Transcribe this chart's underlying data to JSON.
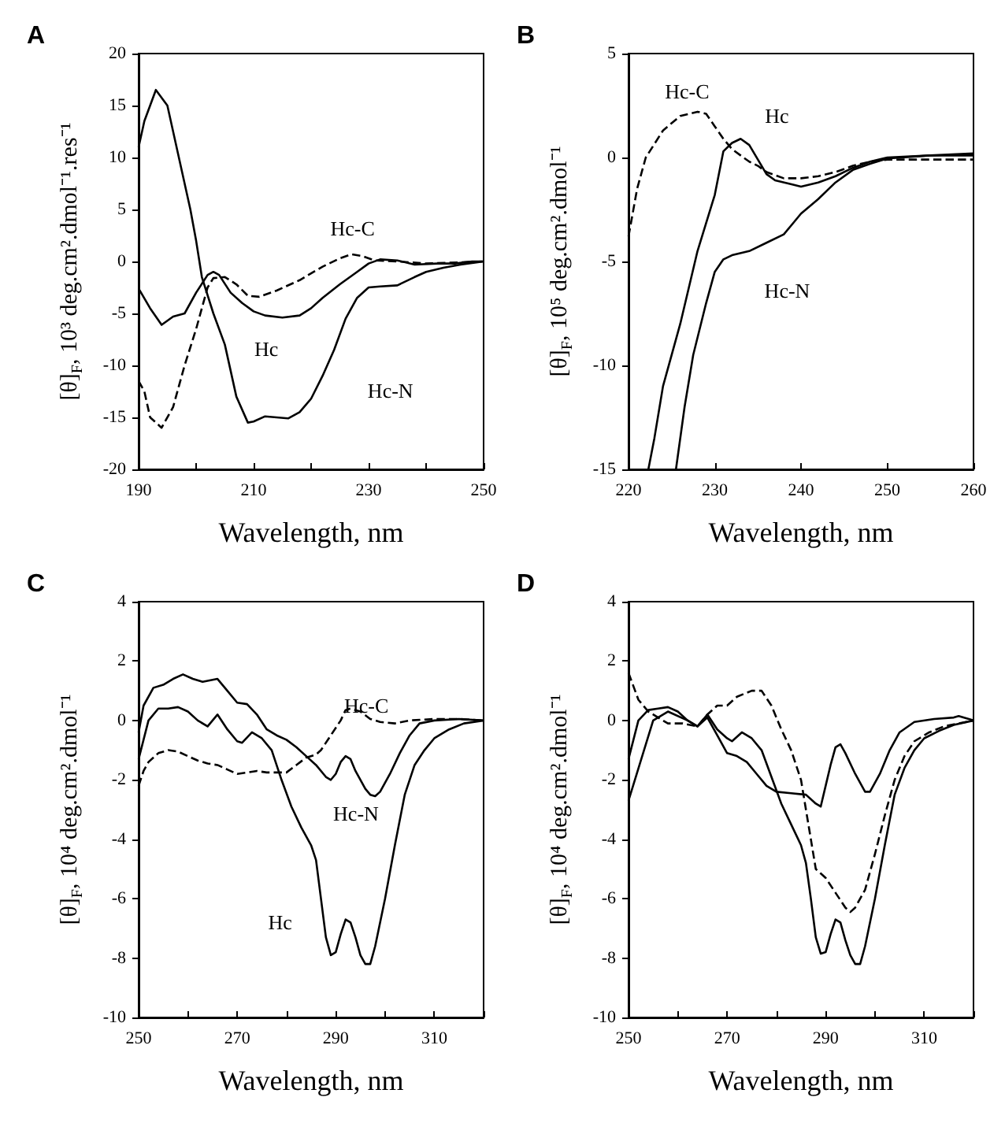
{
  "chart_data": [
    {
      "type": "line",
      "title": "A",
      "xlabel": "Wavelength, nm",
      "ylabel": "[θ]$_{F}$, 10³ deg.cm².dmol⁻¹.res⁻¹",
      "xlim": [
        190,
        250
      ],
      "ylim": [
        -20,
        20
      ],
      "xticks": [
        190,
        {
          "value": 200,
          "label": null
        },
        210,
        {
          "value": 220,
          "label": null
        },
        230,
        {
          "value": 240,
          "label": null
        },
        250
      ],
      "yticks": [
        -20,
        -15,
        -10,
        -5,
        0,
        5,
        10,
        15,
        20
      ],
      "grid": false,
      "legend": false,
      "marker": "none",
      "tick_labels": "xy",
      "series": [
        {
          "name": "Hc",
          "color": "#000000",
          "line_style": "solid",
          "x": [
            190,
            192,
            194,
            196,
            198,
            200,
            202,
            203,
            204,
            206,
            208,
            210,
            212,
            215,
            218,
            220,
            222,
            225,
            228,
            230,
            232,
            235,
            238,
            242,
            245,
            248,
            250
          ],
          "values": [
            -2.6,
            -4.5,
            -6.1,
            -5.3,
            -5,
            -3,
            -1.3,
            -1,
            -1.3,
            -3,
            -4,
            -4.8,
            -5.2,
            -5.4,
            -5.2,
            -4.5,
            -3.5,
            -2.2,
            -1,
            -0.2,
            0.2,
            0.1,
            -0.3,
            -0.2,
            -0.2,
            0,
            0
          ]
        },
        {
          "name": "Hc-N",
          "color": "#000000",
          "line_style": "solid",
          "x": [
            190,
            191,
            193,
            195,
            197,
            199,
            200,
            201,
            203,
            205,
            207,
            209,
            210,
            212,
            214,
            216,
            218,
            220,
            222,
            224,
            226,
            228,
            230,
            232,
            235,
            238,
            240,
            243,
            246,
            250
          ],
          "values": [
            11,
            13.5,
            16.5,
            15,
            10,
            5,
            2,
            -1.5,
            -5,
            -8,
            -13,
            -15.5,
            -15.4,
            -14.9,
            -15,
            -15.1,
            -14.5,
            -13.2,
            -11,
            -8.5,
            -5.5,
            -3.5,
            -2.5,
            -2.4,
            -2.3,
            -1.5,
            -1,
            -0.6,
            -0.3,
            0
          ]
        },
        {
          "name": "Hc-C",
          "color": "#000000",
          "line_style": "dashed",
          "x": [
            190,
            191,
            192,
            194,
            196,
            198,
            200,
            202,
            203,
            205,
            207,
            209,
            211,
            214,
            218,
            222,
            225,
            227,
            229,
            231,
            235,
            240,
            250
          ],
          "values": [
            -11.5,
            -12.5,
            -15,
            -16,
            -14,
            -10,
            -6.5,
            -2.5,
            -1.6,
            -1.5,
            -2.2,
            -3.3,
            -3.4,
            -2.8,
            -1.8,
            -0.5,
            0.3,
            0.7,
            0.5,
            0.1,
            0,
            -0.2,
            0
          ]
        }
      ]
    },
    {
      "type": "line",
      "title": "B",
      "xlabel": "Wavelength, nm",
      "ylabel": "[θ]$_{F}$, 10⁵ deg.cm².dmol⁻¹",
      "xlim": [
        220,
        260
      ],
      "ylim": [
        -15,
        5
      ],
      "xticks": [
        220,
        230,
        240,
        250,
        260
      ],
      "yticks": [
        -15,
        -10,
        -5,
        0,
        5
      ],
      "grid": false,
      "legend": false,
      "marker": "none",
      "series": [
        {
          "name": "Hc",
          "color": "#000000",
          "line_style": "solid",
          "x": [
            222.3,
            223,
            224,
            226,
            228,
            230,
            231,
            232,
            233,
            234,
            235,
            236,
            237,
            239,
            240,
            242,
            244,
            246,
            248,
            250,
            255,
            260
          ],
          "values": [
            -15,
            -13.5,
            -11,
            -8,
            -4.5,
            -1.8,
            0.3,
            0.7,
            0.9,
            0.6,
            -0.1,
            -0.8,
            -1.1,
            -1.3,
            -1.4,
            -1.2,
            -0.9,
            -0.5,
            -0.2,
            0,
            0.1,
            0.2
          ]
        },
        {
          "name": "Hc-N",
          "color": "#000000",
          "line_style": "solid",
          "x": [
            225.5,
            226.5,
            227.5,
            229,
            230,
            231,
            232,
            234,
            236,
            238,
            239,
            240,
            242,
            244,
            246,
            248,
            250,
            255,
            260
          ],
          "values": [
            -15,
            -12,
            -9.5,
            -7,
            -5.5,
            -4.9,
            -4.7,
            -4.5,
            -4.1,
            -3.7,
            -3.2,
            -2.7,
            -2,
            -1.2,
            -0.6,
            -0.3,
            -0.05,
            0.1,
            0.1
          ]
        },
        {
          "name": "Hc-C",
          "color": "#000000",
          "line_style": "dashed",
          "x": [
            220,
            221,
            222,
            224,
            226,
            228,
            229,
            230,
            231,
            232,
            233,
            234,
            235,
            236,
            238,
            240,
            242,
            244,
            246,
            248,
            250,
            260
          ],
          "values": [
            -3.8,
            -1.5,
            0,
            1.3,
            2,
            2.2,
            2.1,
            1.5,
            0.9,
            0.4,
            0.1,
            -0.2,
            -0.4,
            -0.7,
            -1,
            -1,
            -0.9,
            -0.7,
            -0.4,
            -0.2,
            -0.1,
            -0.1
          ]
        }
      ]
    },
    {
      "type": "line",
      "title": "C",
      "xlabel": "Wavelength, nm",
      "ylabel": "[θ]$_{F}$, 10⁴ deg.cm².dmol⁻¹",
      "xlim": [
        250,
        320
      ],
      "ylim": [
        -10,
        4
      ],
      "xticks": [
        250,
        {
          "value": 260,
          "label": null
        },
        270,
        {
          "value": 280,
          "label": null
        },
        290,
        {
          "value": 300,
          "label": null
        },
        310,
        {
          "value": 320,
          "label": null
        }
      ],
      "yticks": [
        -10,
        -8,
        -6,
        -4,
        -2,
        0,
        2,
        4
      ],
      "grid": false,
      "legend": false,
      "marker": "none",
      "series": [
        {
          "name": "Hc",
          "color": "#000000",
          "line_style": "solid",
          "x": [
            250,
            252,
            254,
            256,
            258,
            260,
            262,
            264,
            266,
            268,
            270,
            271,
            273,
            275,
            277,
            279,
            281,
            283,
            285,
            286,
            287,
            288,
            289,
            290,
            291,
            292,
            293,
            294,
            295,
            296,
            297,
            298,
            300,
            302,
            304,
            306,
            308,
            310,
            313,
            316,
            320
          ],
          "values": [
            -1.3,
            0,
            0.4,
            0.4,
            0.45,
            0.3,
            0,
            -0.2,
            0.2,
            -0.3,
            -0.7,
            -0.75,
            -0.4,
            -0.6,
            -1,
            -2,
            -2.9,
            -3.6,
            -4.2,
            -4.7,
            -6,
            -7.3,
            -7.9,
            -7.8,
            -7.2,
            -6.7,
            -6.8,
            -7.3,
            -7.9,
            -8.2,
            -8.2,
            -7.6,
            -6,
            -4.2,
            -2.5,
            -1.5,
            -1,
            -0.6,
            -0.3,
            -0.1,
            0
          ]
        },
        {
          "name": "Hc-N",
          "color": "#000000",
          "line_style": "solid",
          "x": [
            250,
            251,
            253,
            255,
            257,
            259,
            261,
            263,
            266,
            268,
            270,
            272,
            274,
            276,
            278,
            280,
            282,
            284,
            286,
            288,
            289,
            290,
            291,
            292,
            293,
            294,
            296,
            297,
            298,
            299,
            301,
            303,
            305,
            307,
            310,
            315,
            320
          ],
          "values": [
            -0.4,
            0.5,
            1.1,
            1.2,
            1.4,
            1.55,
            1.4,
            1.3,
            1.4,
            1,
            0.6,
            0.55,
            0.2,
            -0.3,
            -0.5,
            -0.65,
            -0.9,
            -1.2,
            -1.5,
            -1.9,
            -2,
            -1.8,
            -1.4,
            -1.2,
            -1.3,
            -1.7,
            -2.3,
            -2.5,
            -2.55,
            -2.4,
            -1.8,
            -1.1,
            -0.5,
            -0.1,
            0,
            0.05,
            0
          ]
        },
        {
          "name": "Hc-C",
          "color": "#000000",
          "line_style": "dashed",
          "x": [
            250,
            251,
            252,
            254,
            256,
            258,
            260,
            262,
            264,
            266,
            268,
            270,
            272,
            274,
            276,
            278,
            280,
            282,
            284,
            286,
            287,
            289,
            291,
            292,
            293,
            295,
            297,
            299,
            302,
            305,
            310,
            315,
            320
          ],
          "values": [
            -2.2,
            -1.7,
            -1.4,
            -1.1,
            -1,
            -1.05,
            -1.2,
            -1.35,
            -1.45,
            -1.5,
            -1.65,
            -1.8,
            -1.75,
            -1.7,
            -1.75,
            -1.75,
            -1.75,
            -1.5,
            -1.25,
            -1.15,
            -1,
            -0.5,
            0,
            0.35,
            0.4,
            0.3,
            0.05,
            -0.05,
            -0.1,
            0,
            0.05,
            0.05,
            0
          ]
        }
      ]
    },
    {
      "type": "line",
      "title": "D",
      "xlabel": "Wavelength, nm",
      "ylabel": "[θ]$_{F}$, 10⁴ deg.cm².dmol⁻¹",
      "xlim": [
        250,
        320
      ],
      "ylim": [
        -10,
        4
      ],
      "xticks": [
        250,
        {
          "value": 260,
          "label": null
        },
        270,
        {
          "value": 280,
          "label": null
        },
        290,
        {
          "value": 300,
          "label": null
        },
        310,
        {
          "value": 320,
          "label": null
        }
      ],
      "yticks": [
        -10,
        -8,
        -6,
        -4,
        -2,
        0,
        2,
        4
      ],
      "grid": false,
      "legend": false,
      "marker": "none",
      "series": [
        {
          "color": "#000000",
          "line_style": "solid",
          "x": [
            250,
            252,
            254,
            256,
            258,
            260,
            262,
            264,
            266,
            268,
            270,
            271,
            273,
            275,
            277,
            279,
            281,
            283,
            285,
            286,
            287,
            288,
            289,
            290,
            291,
            292,
            293,
            294,
            295,
            296,
            297,
            298,
            300,
            302,
            304,
            306,
            308,
            310,
            313,
            316,
            320
          ],
          "values": [
            -1.3,
            0,
            0.35,
            0.4,
            0.45,
            0.3,
            0,
            -0.2,
            0.2,
            -0.3,
            -0.6,
            -0.7,
            -0.4,
            -0.6,
            -1,
            -1.9,
            -2.8,
            -3.5,
            -4.2,
            -4.8,
            -6,
            -7.3,
            -7.85,
            -7.8,
            -7.2,
            -6.7,
            -6.8,
            -7.4,
            -7.9,
            -8.2,
            -8.2,
            -7.6,
            -6,
            -4.2,
            -2.5,
            -1.6,
            -1,
            -0.6,
            -0.35,
            -0.15,
            0
          ]
        },
        {
          "color": "#000000",
          "line_style": "solid",
          "x": [
            250,
            255,
            258,
            262,
            264,
            266,
            268,
            270,
            272,
            274,
            276,
            278,
            280,
            283,
            286,
            288,
            289,
            290,
            291,
            292,
            293,
            294,
            296,
            298,
            299,
            301,
            303,
            305,
            308,
            312,
            316,
            317,
            320
          ],
          "values": [
            -2.7,
            0,
            0.3,
            0,
            -0.2,
            0.1,
            -0.5,
            -1.1,
            -1.2,
            -1.4,
            -1.8,
            -2.2,
            -2.4,
            -2.45,
            -2.5,
            -2.8,
            -2.9,
            -2.2,
            -1.5,
            -0.9,
            -0.8,
            -1.1,
            -1.8,
            -2.4,
            -2.4,
            -1.8,
            -1,
            -0.4,
            -0.05,
            0.05,
            0.1,
            0.15,
            0
          ]
        },
        {
          "color": "#000000",
          "line_style": "dashed",
          "x": [
            250,
            252,
            254,
            258,
            261,
            264,
            266,
            268,
            270,
            272,
            275,
            277,
            279,
            281,
            283,
            285,
            286,
            287,
            288,
            290,
            292,
            294,
            295,
            296,
            298,
            300,
            302,
            304,
            306,
            308,
            311,
            314,
            317,
            320
          ],
          "values": [
            1.6,
            0.7,
            0.3,
            -0.1,
            -0.1,
            -0.2,
            0.2,
            0.5,
            0.5,
            0.8,
            1,
            1,
            0.5,
            -0.3,
            -1,
            -2,
            -3,
            -4,
            -5,
            -5.3,
            -5.8,
            -6.3,
            -6.45,
            -6.3,
            -5.7,
            -4.5,
            -3.2,
            -2,
            -1.2,
            -0.7,
            -0.4,
            -0.2,
            -0.1,
            0
          ]
        }
      ]
    }
  ]
}
